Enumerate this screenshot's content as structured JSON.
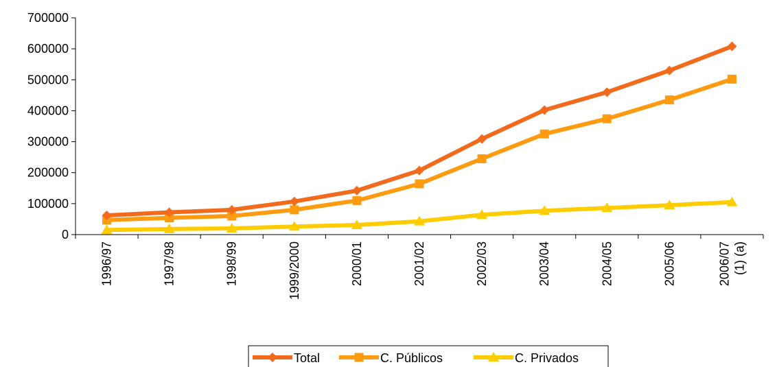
{
  "chart_data": {
    "type": "line",
    "categories": [
      [
        "1996/97"
      ],
      [
        "1997/98"
      ],
      [
        "1998/99"
      ],
      [
        "1999/2000"
      ],
      [
        "2000/01"
      ],
      [
        "2001/02"
      ],
      [
        "2002/03"
      ],
      [
        "2003/04"
      ],
      [
        "2004/05"
      ],
      [
        "2005/06"
      ],
      [
        "2006/07",
        "(1) (a)"
      ]
    ],
    "series": [
      {
        "name": "Total",
        "marker": "diamond",
        "color": "#F26B1D",
        "values": [
          62000,
          72000,
          80000,
          107000,
          142000,
          207000,
          309000,
          402000,
          460000,
          530000,
          608000
        ]
      },
      {
        "name": "C. Públicos",
        "marker": "square",
        "color": "#FF9B10",
        "values": [
          47000,
          54000,
          60000,
          80000,
          110000,
          164000,
          245000,
          325000,
          374000,
          435000,
          502000
        ]
      },
      {
        "name": "C. Privados",
        "marker": "triangle",
        "color": "#FFCC00",
        "values": [
          15000,
          18000,
          20000,
          26000,
          31000,
          43000,
          64000,
          77000,
          86000,
          95000,
          105000
        ]
      }
    ],
    "title": "",
    "xlabel": "",
    "ylabel": "",
    "ylim": [
      0,
      700000
    ],
    "yticks": [
      0,
      100000,
      200000,
      300000,
      400000,
      500000,
      600000,
      700000
    ],
    "grid": false,
    "legend_position": "bottom-center"
  }
}
